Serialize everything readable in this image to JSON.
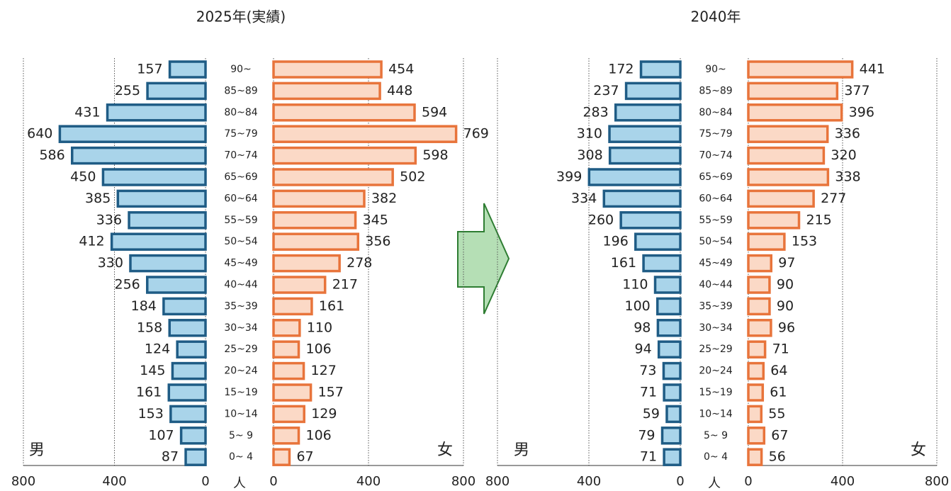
{
  "chart_data": [
    {
      "type": "pyramid",
      "title": "2025年(実績)",
      "unit": "人",
      "categories": [
        "90~",
        "85~89",
        "80~84",
        "75~79",
        "70~74",
        "65~69",
        "60~64",
        "55~59",
        "50~54",
        "45~49",
        "40~44",
        "35~39",
        "30~34",
        "25~29",
        "20~24",
        "15~19",
        "10~14",
        "5~ 9",
        "0~ 4"
      ],
      "series": [
        {
          "name": "男",
          "color": "#a9d4ea",
          "edge": "#1f5c85",
          "values": [
            157,
            255,
            431,
            640,
            586,
            450,
            385,
            336,
            412,
            330,
            256,
            184,
            158,
            124,
            145,
            161,
            153,
            107,
            87
          ]
        },
        {
          "name": "女",
          "color": "#fbd9c6",
          "edge": "#e8743b",
          "values": [
            454,
            448,
            594,
            769,
            598,
            502,
            382,
            345,
            356,
            278,
            217,
            161,
            110,
            106,
            127,
            157,
            129,
            106,
            67
          ]
        }
      ],
      "xlim": [
        0,
        800
      ],
      "xticks": [
        0,
        400,
        800
      ],
      "grid": true
    },
    {
      "type": "pyramid",
      "title": "2040年",
      "unit": "人",
      "categories": [
        "90~",
        "85~89",
        "80~84",
        "75~79",
        "70~74",
        "65~69",
        "60~64",
        "55~59",
        "50~54",
        "45~49",
        "40~44",
        "35~39",
        "30~34",
        "25~29",
        "20~24",
        "15~19",
        "10~14",
        "5~ 9",
        "0~ 4"
      ],
      "series": [
        {
          "name": "男",
          "color": "#a9d4ea",
          "edge": "#1f5c85",
          "values": [
            172,
            237,
            283,
            310,
            308,
            399,
            334,
            260,
            196,
            161,
            110,
            100,
            98,
            94,
            73,
            71,
            59,
            79,
            71
          ]
        },
        {
          "name": "女",
          "color": "#fbd9c6",
          "edge": "#e8743b",
          "values": [
            441,
            377,
            396,
            336,
            320,
            338,
            277,
            215,
            153,
            97,
            90,
            90,
            96,
            71,
            64,
            61,
            55,
            67,
            56
          ]
        }
      ],
      "xlim": [
        0,
        800
      ],
      "xticks": [
        0,
        400,
        800
      ],
      "grid": true
    }
  ]
}
